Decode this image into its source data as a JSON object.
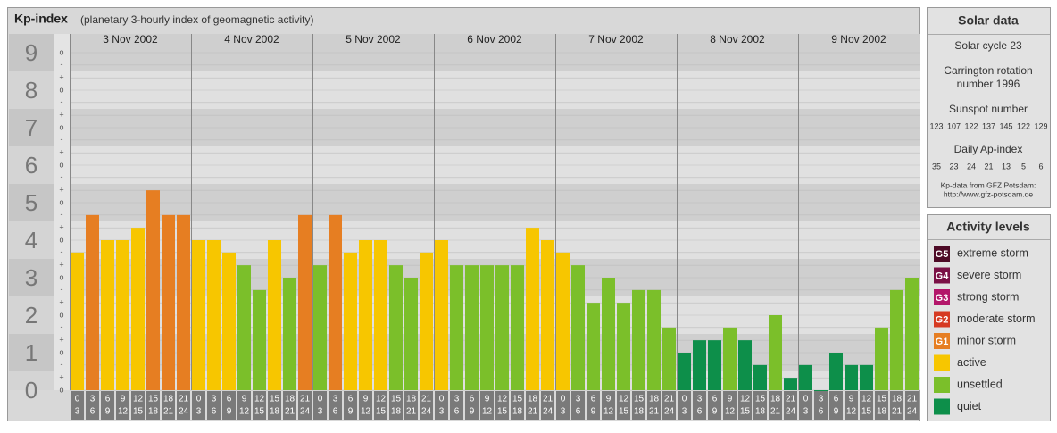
{
  "chart_data": {
    "type": "bar",
    "title": "Kp-index",
    "subtitle": "(planetary 3-hourly index of geomagnetic activity)",
    "days": [
      "3 Nov 2002",
      "4 Nov 2002",
      "5 Nov 2002",
      "6 Nov 2002",
      "7 Nov 2002",
      "8 Nov 2002",
      "9 Nov 2002"
    ],
    "intervals": [
      {
        "start": 0,
        "end": 3
      },
      {
        "start": 3,
        "end": 6
      },
      {
        "start": 6,
        "end": 9
      },
      {
        "start": 9,
        "end": 12
      },
      {
        "start": 12,
        "end": 15
      },
      {
        "start": 15,
        "end": 18
      },
      {
        "start": 18,
        "end": 21
      },
      {
        "start": 21,
        "end": 24
      }
    ],
    "values": [
      3.67,
      4.67,
      4,
      4,
      4.33,
      5.33,
      4.67,
      4.67,
      4,
      4,
      3.67,
      3.33,
      2.67,
      4,
      3,
      4.67,
      3.33,
      4.67,
      3.67,
      4,
      4,
      3.33,
      3,
      3.67,
      4,
      3.33,
      3.33,
      3.33,
      3.33,
      3.33,
      4.33,
      4,
      3.67,
      3.33,
      2.33,
      3,
      2.33,
      2.67,
      2.67,
      1.67,
      1,
      1.33,
      1.33,
      1.67,
      1.33,
      0.67,
      2,
      0.33,
      0.67,
      0,
      1,
      0.67,
      0.67,
      1.67,
      2.67,
      3
    ],
    "colors": [
      "#f7c600",
      "#e67e22",
      "#f7c600",
      "#f7c600",
      "#f7c600",
      "#e67e22",
      "#e67e22",
      "#e67e22",
      "#f7c600",
      "#f7c600",
      "#f7c600",
      "#7bbf2a",
      "#7bbf2a",
      "#f7c600",
      "#7bbf2a",
      "#e67e22",
      "#7bbf2a",
      "#e67e22",
      "#f7c600",
      "#f7c600",
      "#f7c600",
      "#7bbf2a",
      "#7bbf2a",
      "#f7c600",
      "#f7c600",
      "#7bbf2a",
      "#7bbf2a",
      "#7bbf2a",
      "#7bbf2a",
      "#7bbf2a",
      "#f7c600",
      "#f7c600",
      "#f7c600",
      "#7bbf2a",
      "#7bbf2a",
      "#7bbf2a",
      "#7bbf2a",
      "#7bbf2a",
      "#7bbf2a",
      "#7bbf2a",
      "#0d8f4a",
      "#0d8f4a",
      "#0d8f4a",
      "#7bbf2a",
      "#0d8f4a",
      "#0d8f4a",
      "#7bbf2a",
      "#0d8f4a",
      "#0d8f4a",
      "#0d8f4a",
      "#0d8f4a",
      "#0d8f4a",
      "#0d8f4a",
      "#7bbf2a",
      "#7bbf2a",
      "#7bbf2a"
    ],
    "ylim": [
      0,
      9.5
    ],
    "yticks": [
      0,
      1,
      2,
      3,
      4,
      5,
      6,
      7,
      8,
      9
    ],
    "minor_yticks": [
      {
        "value": 0,
        "label": "o"
      },
      {
        "value": 0.33,
        "label": "+"
      },
      {
        "value": 0.67,
        "label": "-"
      },
      {
        "value": 1,
        "label": "o"
      },
      {
        "value": 1.33,
        "label": "+"
      },
      {
        "value": 1.67,
        "label": "-"
      },
      {
        "value": 2,
        "label": "o"
      },
      {
        "value": 2.33,
        "label": "+"
      },
      {
        "value": 2.67,
        "label": "-"
      },
      {
        "value": 3,
        "label": "o"
      },
      {
        "value": 3.33,
        "label": "+"
      },
      {
        "value": 3.67,
        "label": "-"
      },
      {
        "value": 4,
        "label": "o"
      },
      {
        "value": 4.33,
        "label": "+"
      },
      {
        "value": 4.67,
        "label": "-"
      },
      {
        "value": 5,
        "label": "o"
      },
      {
        "value": 5.33,
        "label": "+"
      },
      {
        "value": 5.67,
        "label": "-"
      },
      {
        "value": 6,
        "label": "o"
      },
      {
        "value": 6.33,
        "label": "+"
      },
      {
        "value": 6.67,
        "label": "-"
      },
      {
        "value": 7,
        "label": "o"
      },
      {
        "value": 7.33,
        "label": "+"
      },
      {
        "value": 7.67,
        "label": "-"
      },
      {
        "value": 8,
        "label": "o"
      },
      {
        "value": 8.33,
        "label": "+"
      },
      {
        "value": 8.67,
        "label": "-"
      },
      {
        "value": 9,
        "label": "o"
      }
    ],
    "grid": true
  },
  "solar_data": {
    "title": "Solar data",
    "cycle": "Solar cycle 23",
    "carrington": [
      "Carrington rotation",
      "number 1996"
    ],
    "sunspot_title": "Sunspot number",
    "sunspot_numbers": [
      123,
      107,
      122,
      137,
      145,
      122,
      129
    ],
    "ap_title": "Daily Ap-index",
    "ap_values": [
      35,
      23,
      24,
      21,
      13,
      5,
      6
    ],
    "source": "Kp-data from GFZ Potsdam:",
    "url": "http://www.gfz-potsdam.de"
  },
  "activity_levels": {
    "title": "Activity levels",
    "items": [
      {
        "badge": "G5",
        "label": "extreme storm",
        "color": "#4d0a26"
      },
      {
        "badge": "G4",
        "label": "severe storm",
        "color": "#7a1045"
      },
      {
        "badge": "G3",
        "label": "strong storm",
        "color": "#b3166a"
      },
      {
        "badge": "G2",
        "label": "moderate storm",
        "color": "#d63a22"
      },
      {
        "badge": "G1",
        "label": "minor storm",
        "color": "#e67e22"
      },
      {
        "label": "active",
        "color": "#f7c600"
      },
      {
        "label": "unsettled",
        "color": "#7bbf2a"
      },
      {
        "label": "quiet",
        "color": "#0d8f4a"
      }
    ]
  }
}
